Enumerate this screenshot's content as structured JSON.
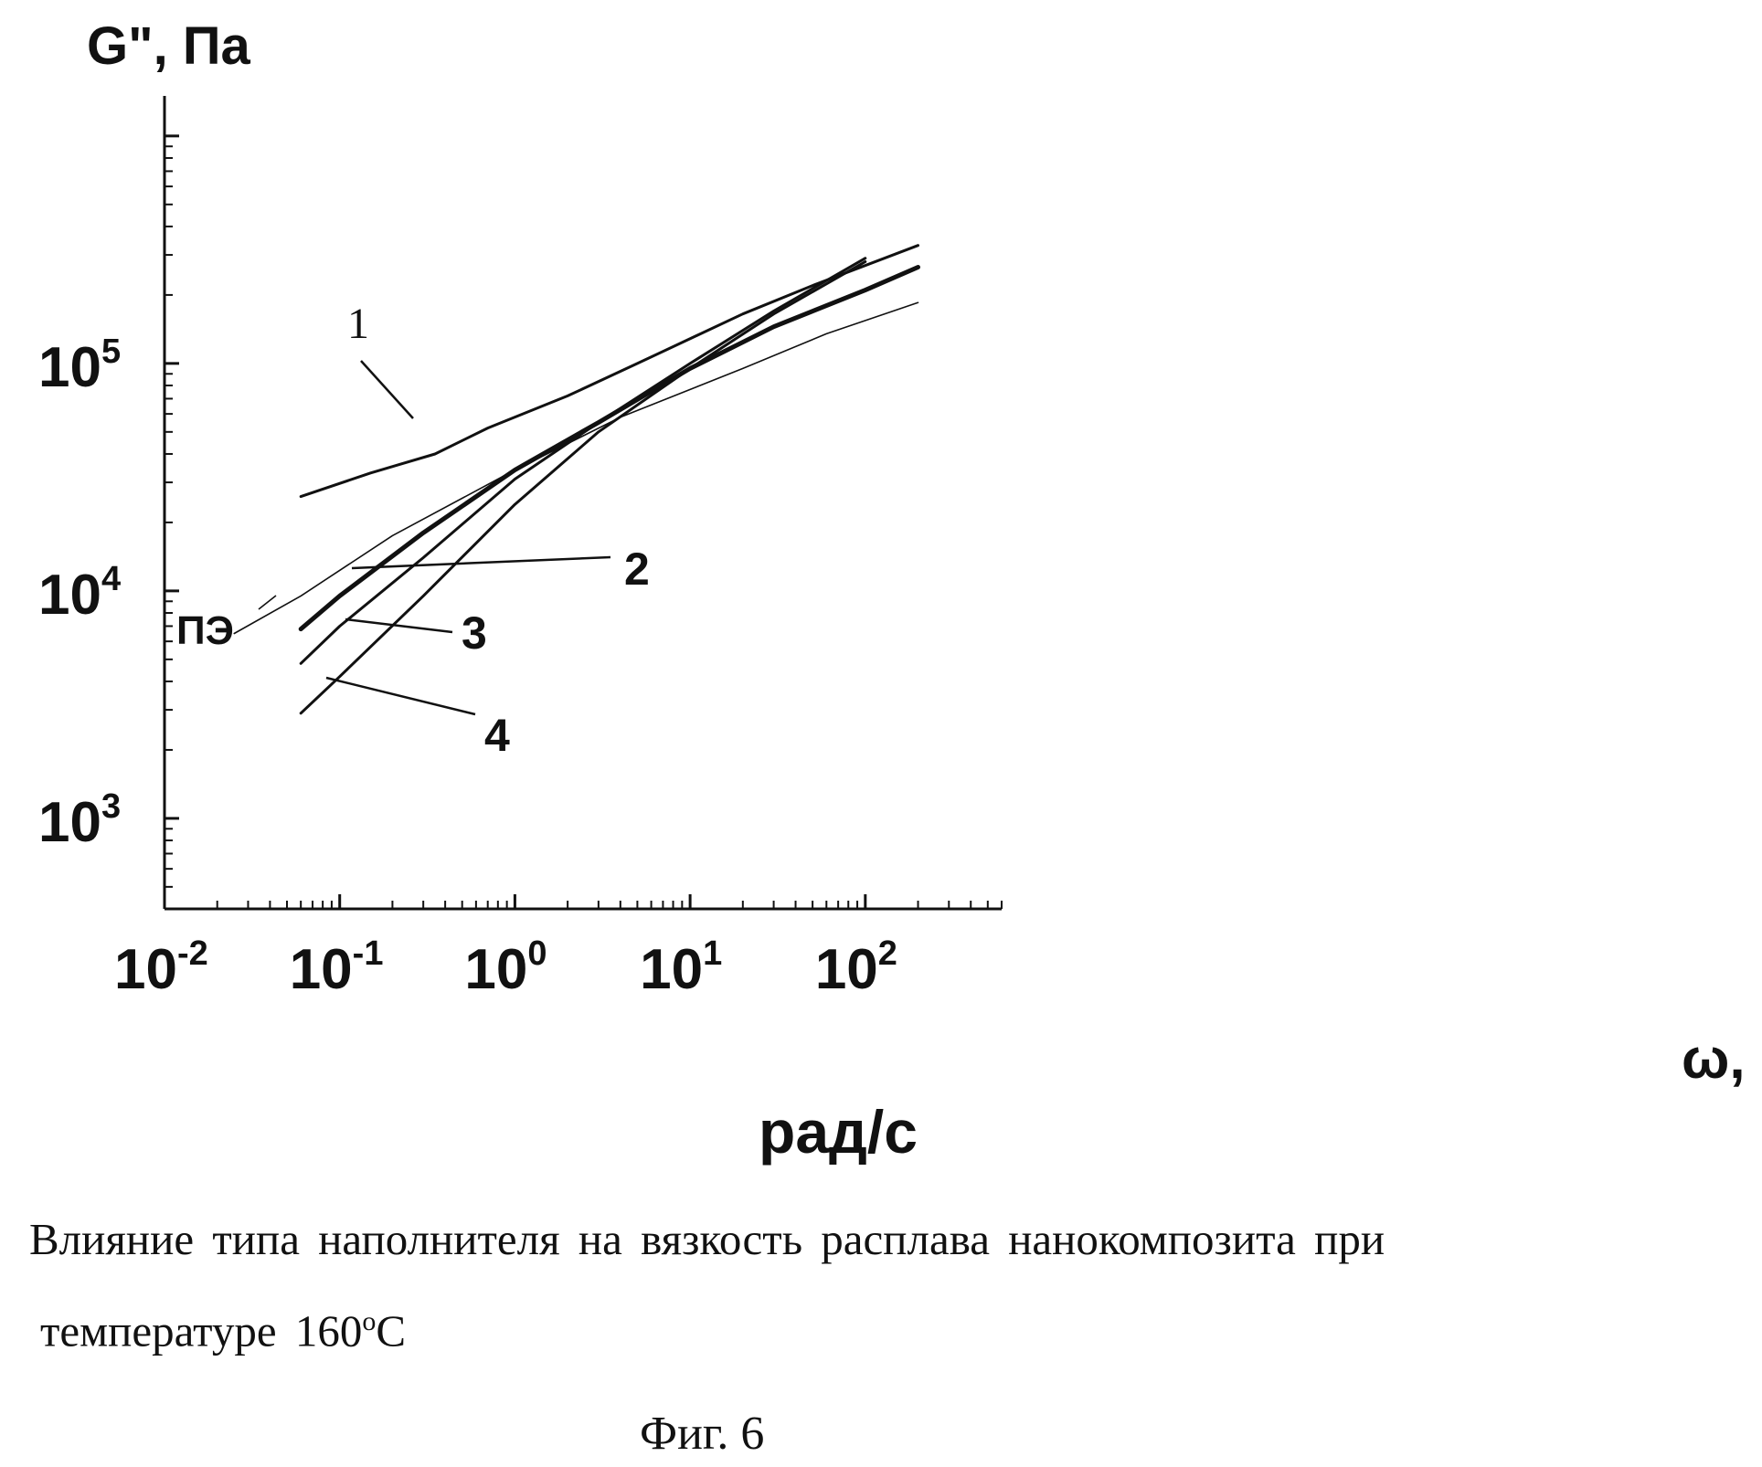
{
  "chart_data": {
    "type": "line",
    "ylabel": "G\", Па",
    "xlabel_part1": "ω,",
    "xlabel_part2": "рад/с",
    "x_scale": "log",
    "y_scale": "log",
    "xlim": [
      0.01,
      600
    ],
    "ylim": [
      400,
      1500000
    ],
    "x_ticks": [
      {
        "value": 0.01,
        "base": "10",
        "exp": "-2"
      },
      {
        "value": 0.1,
        "base": "10",
        "exp": "-1"
      },
      {
        "value": 1,
        "base": "10",
        "exp": "0"
      },
      {
        "value": 10,
        "base": "10",
        "exp": "1"
      },
      {
        "value": 100,
        "base": "10",
        "exp": "2"
      }
    ],
    "y_ticks": [
      {
        "value": 1000,
        "base": "10",
        "exp": "3"
      },
      {
        "value": 10000,
        "base": "10",
        "exp": "4"
      },
      {
        "value": 100000,
        "base": "10",
        "exp": "5"
      }
    ],
    "series": [
      {
        "name": "1",
        "weight": "medium",
        "points": [
          [
            0.06,
            26000
          ],
          [
            0.15,
            33000
          ],
          [
            0.35,
            40000
          ],
          [
            0.7,
            52000
          ],
          [
            2,
            72000
          ],
          [
            5,
            100000
          ],
          [
            20,
            165000
          ],
          [
            50,
            220000
          ],
          [
            200,
            330000
          ]
        ]
      },
      {
        "name": "2",
        "weight": "heavy",
        "points": [
          [
            0.06,
            6800
          ],
          [
            0.1,
            9500
          ],
          [
            0.3,
            18000
          ],
          [
            1,
            34000
          ],
          [
            3,
            55000
          ],
          [
            10,
            95000
          ],
          [
            30,
            145000
          ],
          [
            100,
            210000
          ],
          [
            200,
            265000
          ]
        ]
      },
      {
        "name": "3",
        "weight": "medium",
        "points": [
          [
            0.06,
            4800
          ],
          [
            0.1,
            7000
          ],
          [
            0.3,
            14000
          ],
          [
            1,
            31000
          ],
          [
            3,
            55000
          ],
          [
            10,
            100000
          ],
          [
            30,
            170000
          ],
          [
            100,
            290000
          ]
        ]
      },
      {
        "name": "4",
        "weight": "medium",
        "points": [
          [
            0.06,
            2900
          ],
          [
            0.1,
            4200
          ],
          [
            0.3,
            9500
          ],
          [
            1,
            24000
          ],
          [
            3,
            50000
          ],
          [
            10,
            95000
          ],
          [
            30,
            165000
          ],
          [
            100,
            280000
          ]
        ]
      },
      {
        "name": "ПЭ",
        "weight": "thin",
        "points": [
          [
            0.025,
            6500
          ],
          [
            0.06,
            9500
          ],
          [
            0.2,
            17500
          ],
          [
            1,
            34000
          ],
          [
            4,
            58000
          ],
          [
            20,
            95000
          ],
          [
            60,
            135000
          ],
          [
            200,
            185000
          ]
        ]
      }
    ],
    "annotations": [
      "1",
      "2",
      "3",
      "4",
      "ПЭ"
    ]
  },
  "caption": {
    "line1": "Влияние типа наполнителя на вязкость расплава нанокомпозита при",
    "line2_text": "температуре 160",
    "line2_sup": "o",
    "line2_unit": "C"
  },
  "figure_label": "Фиг. 6"
}
